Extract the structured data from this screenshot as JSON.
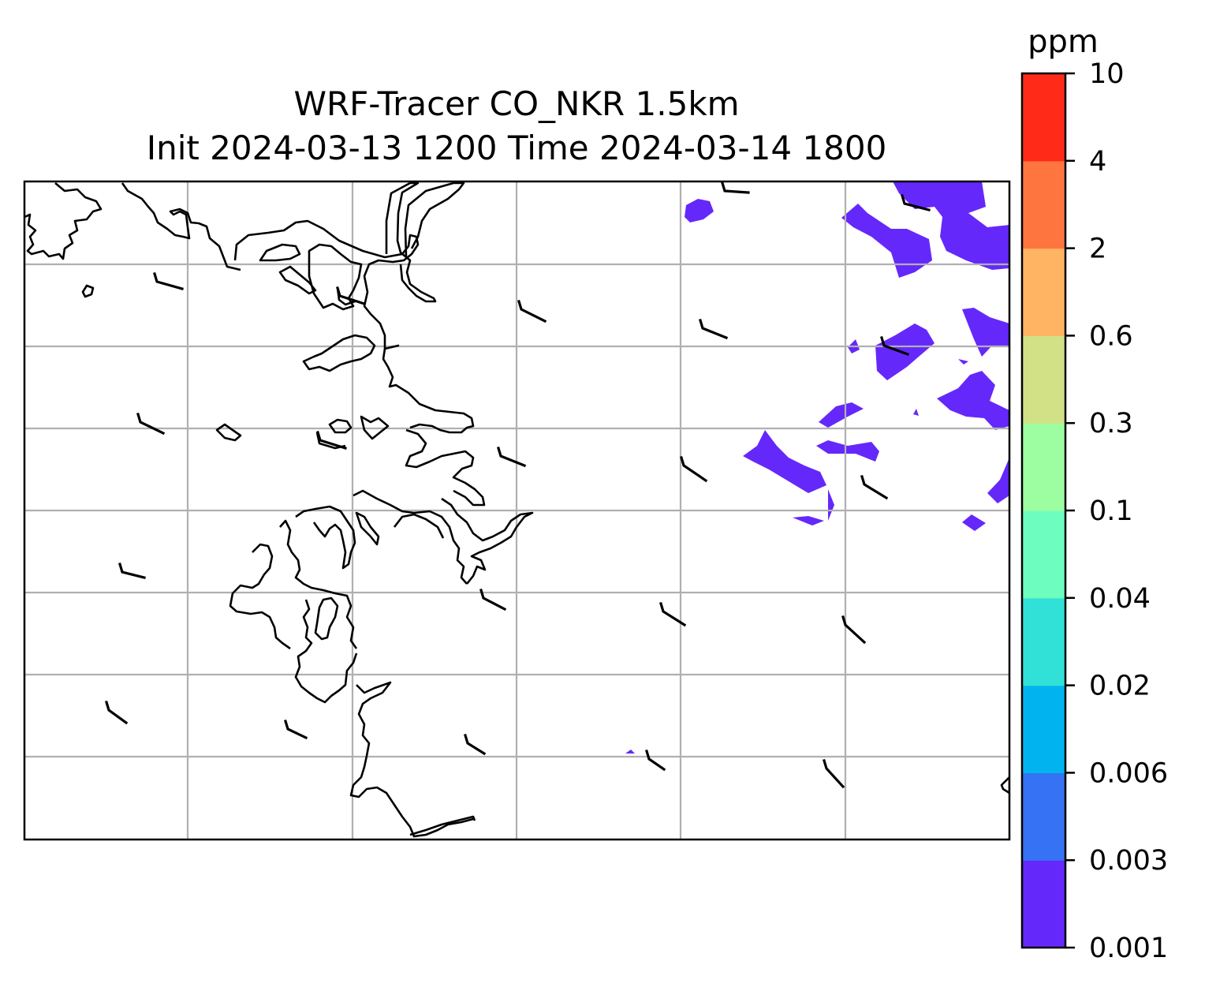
{
  "title": {
    "line1": "WRF-Tracer CO_NKR 1.5km",
    "line2": "Init 2024-03-13 1200 Time 2024-03-14 1800"
  },
  "colorbar": {
    "unit": "ppm",
    "levels": [
      "0.001",
      "0.003",
      "0.006",
      "0.02",
      "0.04",
      "0.1",
      "0.3",
      "0.6",
      "2",
      "4",
      "10"
    ],
    "colors": [
      "#6528fb",
      "#3572f4",
      "#01b4ef",
      "#31e1d7",
      "#6dfdbf",
      "#9dfea1",
      "#d2e185",
      "#ffb463",
      "#ff7540",
      "#ff2a18"
    ]
  },
  "map": {
    "gridlines": true,
    "coastline_color": "#000000",
    "tracer_fill_color": "#6528fb",
    "wind_barb_color": "#000000"
  }
}
